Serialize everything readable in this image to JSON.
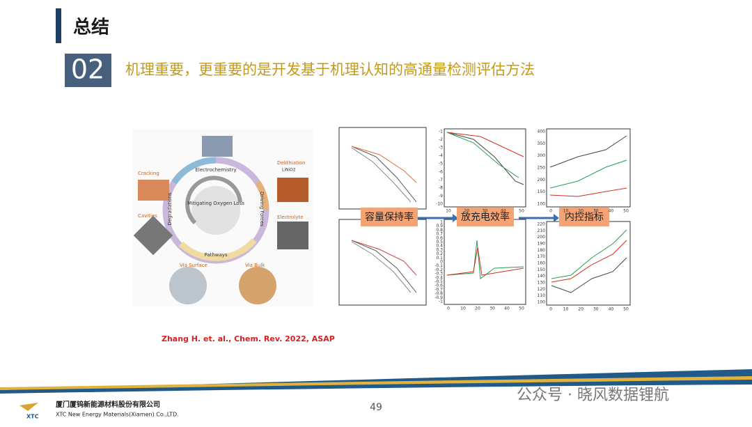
{
  "header": {
    "title": "总结",
    "number": "02",
    "subtitle": "机理重要，更重要的是开发基于机理认知的高通量检测评估方法"
  },
  "figure_left": {
    "center": "Mitigating Oxygen Loss",
    "ring": [
      "Electrochemistry",
      "Driving Forces",
      "Pathways",
      "Degradations"
    ],
    "items": [
      "Cracking",
      "Cavities",
      "Delithiation",
      "LiNiO2",
      "Electrolyte",
      "Via Surface",
      "Via Bulk"
    ]
  },
  "citation": "Zhang H. et. al., Chem. Rev. 2022, ASAP",
  "figure_right": {
    "labels": [
      "容量保持率",
      "放充电效率",
      "内控指标"
    ],
    "panels": [
      {
        "yticks": [
          -1,
          -2,
          -3,
          -4,
          -5,
          -6,
          -7,
          -8,
          -9,
          -10
        ],
        "xticks": [
          10,
          20,
          30,
          40,
          50
        ]
      },
      {
        "yticks": [
          400,
          350,
          300,
          250,
          200,
          150,
          100
        ],
        "xticks": [
          0,
          10,
          20,
          30,
          40,
          50
        ]
      },
      {
        "yticks": [
          1,
          0.9,
          0.8,
          0.7,
          0.6,
          0.5,
          0.4,
          0.3,
          0.2,
          0.1,
          0,
          -0.1,
          -0.2,
          -0.3,
          -0.4,
          -0.5,
          -0.6,
          -0.7,
          -0.8,
          -0.9,
          -1
        ],
        "xticks": [
          0,
          10,
          20,
          30,
          40,
          50
        ]
      },
      {
        "yticks": [
          220,
          210,
          200,
          190,
          180,
          170,
          160,
          150,
          140,
          130,
          120,
          110,
          100
        ],
        "xticks": [
          0,
          10,
          20,
          30,
          40,
          50
        ]
      }
    ]
  },
  "footer": {
    "page": "49",
    "company_cn": "厦门厦钨新能源材料股份有限公司",
    "company_en": "XTC New Energy Materials(Xiamen) Co.,LTD.",
    "logo": "XTC",
    "watermark": "公众号 · 晓风数据锂航"
  }
}
